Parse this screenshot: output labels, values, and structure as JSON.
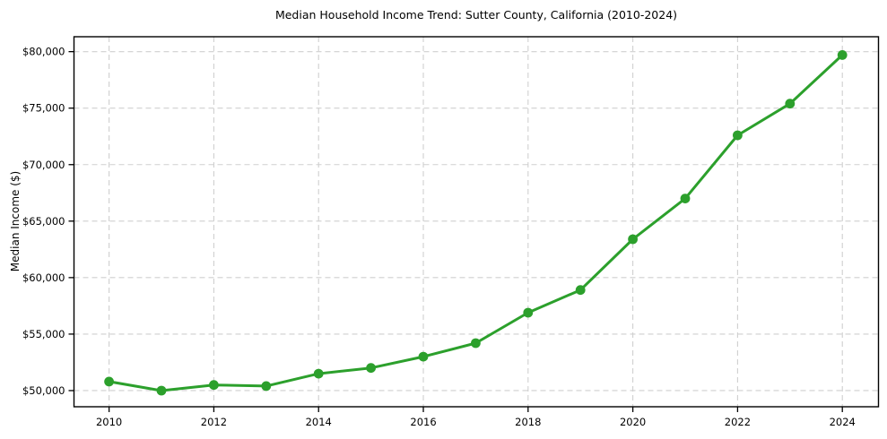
{
  "chart_data": {
    "type": "line",
    "title": "Median Household Income Trend: Sutter County, California (2010-2024)",
    "xlabel": "",
    "ylabel": "Median Income ($)",
    "x": [
      2010,
      2011,
      2012,
      2013,
      2014,
      2015,
      2016,
      2017,
      2018,
      2019,
      2020,
      2021,
      2022,
      2023,
      2024
    ],
    "values": [
      50800,
      50000,
      50500,
      50400,
      51500,
      52000,
      53000,
      54200,
      56900,
      58900,
      63400,
      67000,
      72600,
      75400,
      79700
    ],
    "series_name": "Median household income",
    "x_ticks": [
      2010,
      2012,
      2014,
      2016,
      2018,
      2020,
      2022,
      2024
    ],
    "x_tick_labels": [
      "2010",
      "2012",
      "2014",
      "2016",
      "2018",
      "2020",
      "2022",
      "2024"
    ],
    "y_ticks": [
      50000,
      55000,
      60000,
      65000,
      70000,
      75000,
      80000
    ],
    "y_tick_labels": [
      "$50,000",
      "$55,000",
      "$60,000",
      "$65,000",
      "$70,000",
      "$75,000",
      "$80,000"
    ],
    "xlim": [
      2009.33,
      2024.69
    ],
    "ylim": [
      48570,
      81320
    ],
    "grid": true,
    "grid_style": "dashed",
    "legend": "none",
    "line_color": "#2ca02c",
    "marker": "circle",
    "grid_color": "#cfcfcf",
    "spine_color": "#000000",
    "background_color": "#ffffff"
  }
}
